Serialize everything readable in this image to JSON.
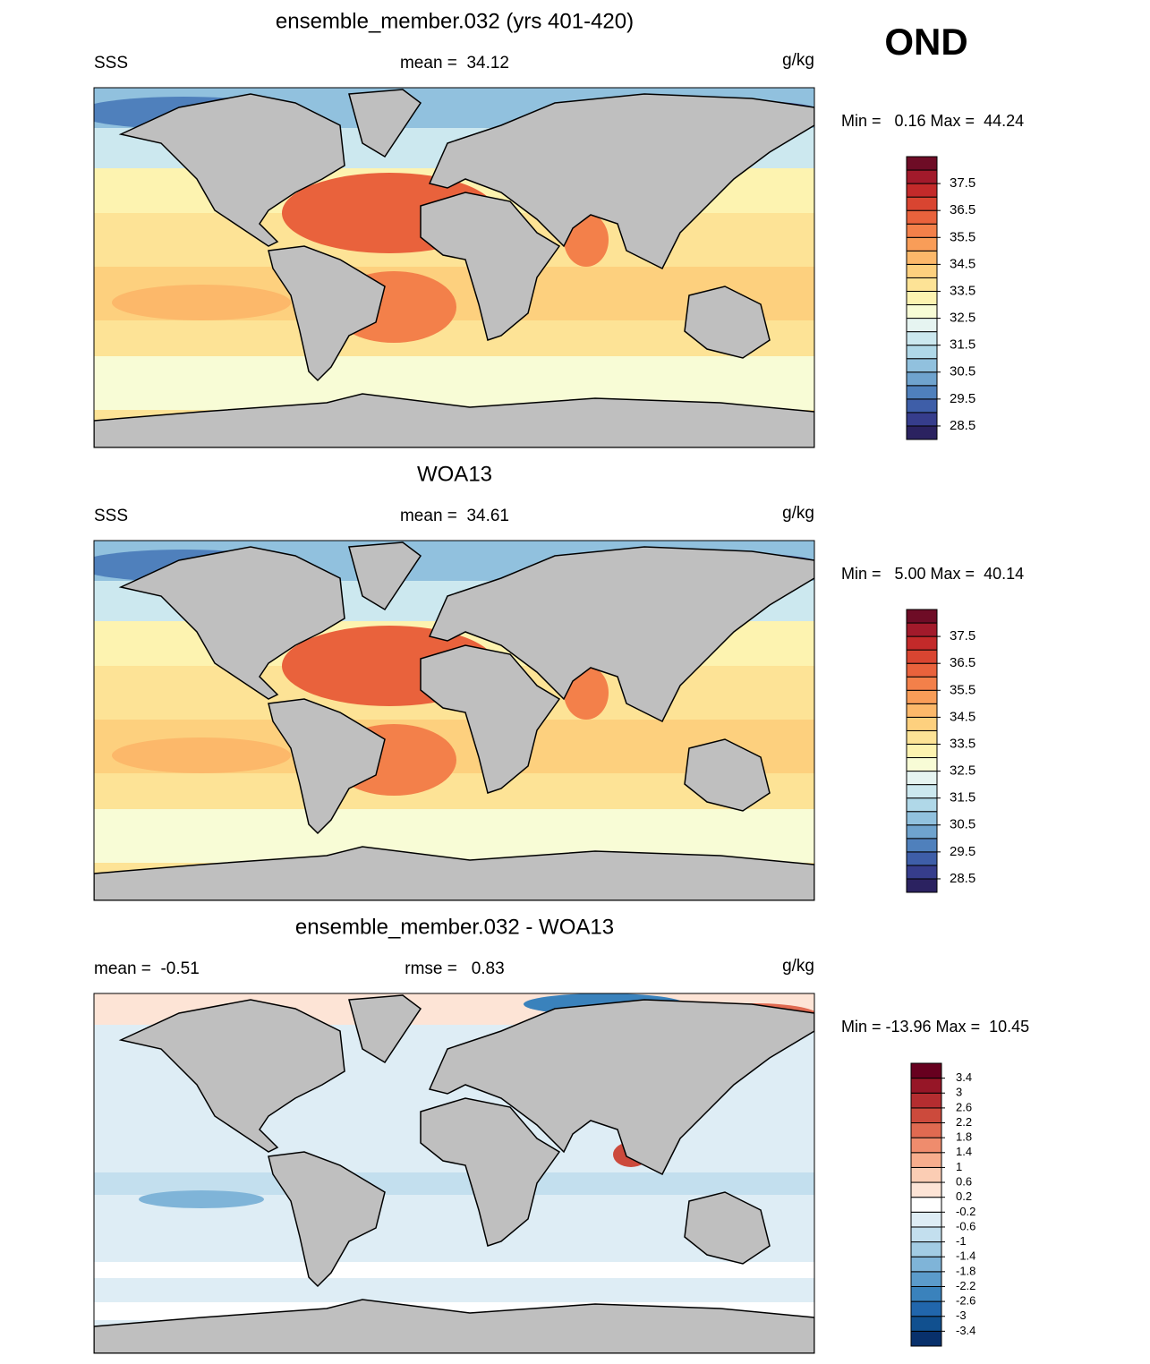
{
  "season": "OND",
  "panels": [
    {
      "title": "ensemble_member.032 (yrs 401-420)",
      "left": "SSS",
      "center": "mean =  34.12",
      "units": "g/kg",
      "stats": "Min =   0.16 Max =  44.24",
      "style": "full",
      "colorbar": {
        "lim": [
          28,
          38.5
        ],
        "ticks": [
          37.5,
          36.5,
          35.5,
          34.5,
          33.5,
          32.5,
          31.5,
          30.5,
          29.5,
          28.5
        ],
        "colors": [
          "#2b2260",
          "#363d8c",
          "#3e5ea8",
          "#4f80bc",
          "#6fa3ce",
          "#91c1de",
          "#b0d8e8",
          "#cce8ef",
          "#e6f4f1",
          "#f8fcd6",
          "#fdf3b0",
          "#fde396",
          "#fdd07e",
          "#fcb86a",
          "#f99d58",
          "#f3804a",
          "#e9623c",
          "#d94531",
          "#c32a2a",
          "#a21a2b",
          "#6e0c26"
        ]
      }
    },
    {
      "title": "WOA13",
      "left": "SSS",
      "center": "mean =  34.61",
      "units": "g/kg",
      "stats": "Min =   5.00 Max =  40.14",
      "style": "full",
      "colorbar": {
        "lim": [
          28,
          38.5
        ],
        "ticks": [
          37.5,
          36.5,
          35.5,
          34.5,
          33.5,
          32.5,
          31.5,
          30.5,
          29.5,
          28.5
        ],
        "colors": [
          "#2b2260",
          "#363d8c",
          "#3e5ea8",
          "#4f80bc",
          "#6fa3ce",
          "#91c1de",
          "#b0d8e8",
          "#cce8ef",
          "#e6f4f1",
          "#f8fcd6",
          "#fdf3b0",
          "#fde396",
          "#fdd07e",
          "#fcb86a",
          "#f99d58",
          "#f3804a",
          "#e9623c",
          "#d94531",
          "#c32a2a",
          "#a21a2b",
          "#6e0c26"
        ]
      }
    },
    {
      "title": "ensemble_member.032 - WOA13",
      "left": "mean =  -0.51",
      "center": "rmse =   0.83",
      "units": "g/kg",
      "stats": "Min = -13.96 Max =  10.45",
      "style": "diff",
      "colorbar": {
        "lim": [
          -3.8,
          3.8
        ],
        "ticks": [
          3.4,
          3,
          2.6,
          2.2,
          1.8,
          1.4,
          1,
          0.6,
          0.2,
          -0.2,
          -0.6,
          -1,
          -1.4,
          -1.8,
          -2.2,
          -2.6,
          -3,
          -3.4
        ],
        "colors": [
          "#08306b",
          "#11508f",
          "#2166ac",
          "#3a82bc",
          "#5b9bcb",
          "#7fb4d8",
          "#a2cce4",
          "#c3dfee",
          "#deedf5",
          "#ffffff",
          "#fde4d6",
          "#fbcdb4",
          "#f7ad8d",
          "#ef8c6d",
          "#e06a51",
          "#cc4a3c",
          "#b42d30",
          "#961627",
          "#67001f"
        ]
      }
    }
  ]
}
